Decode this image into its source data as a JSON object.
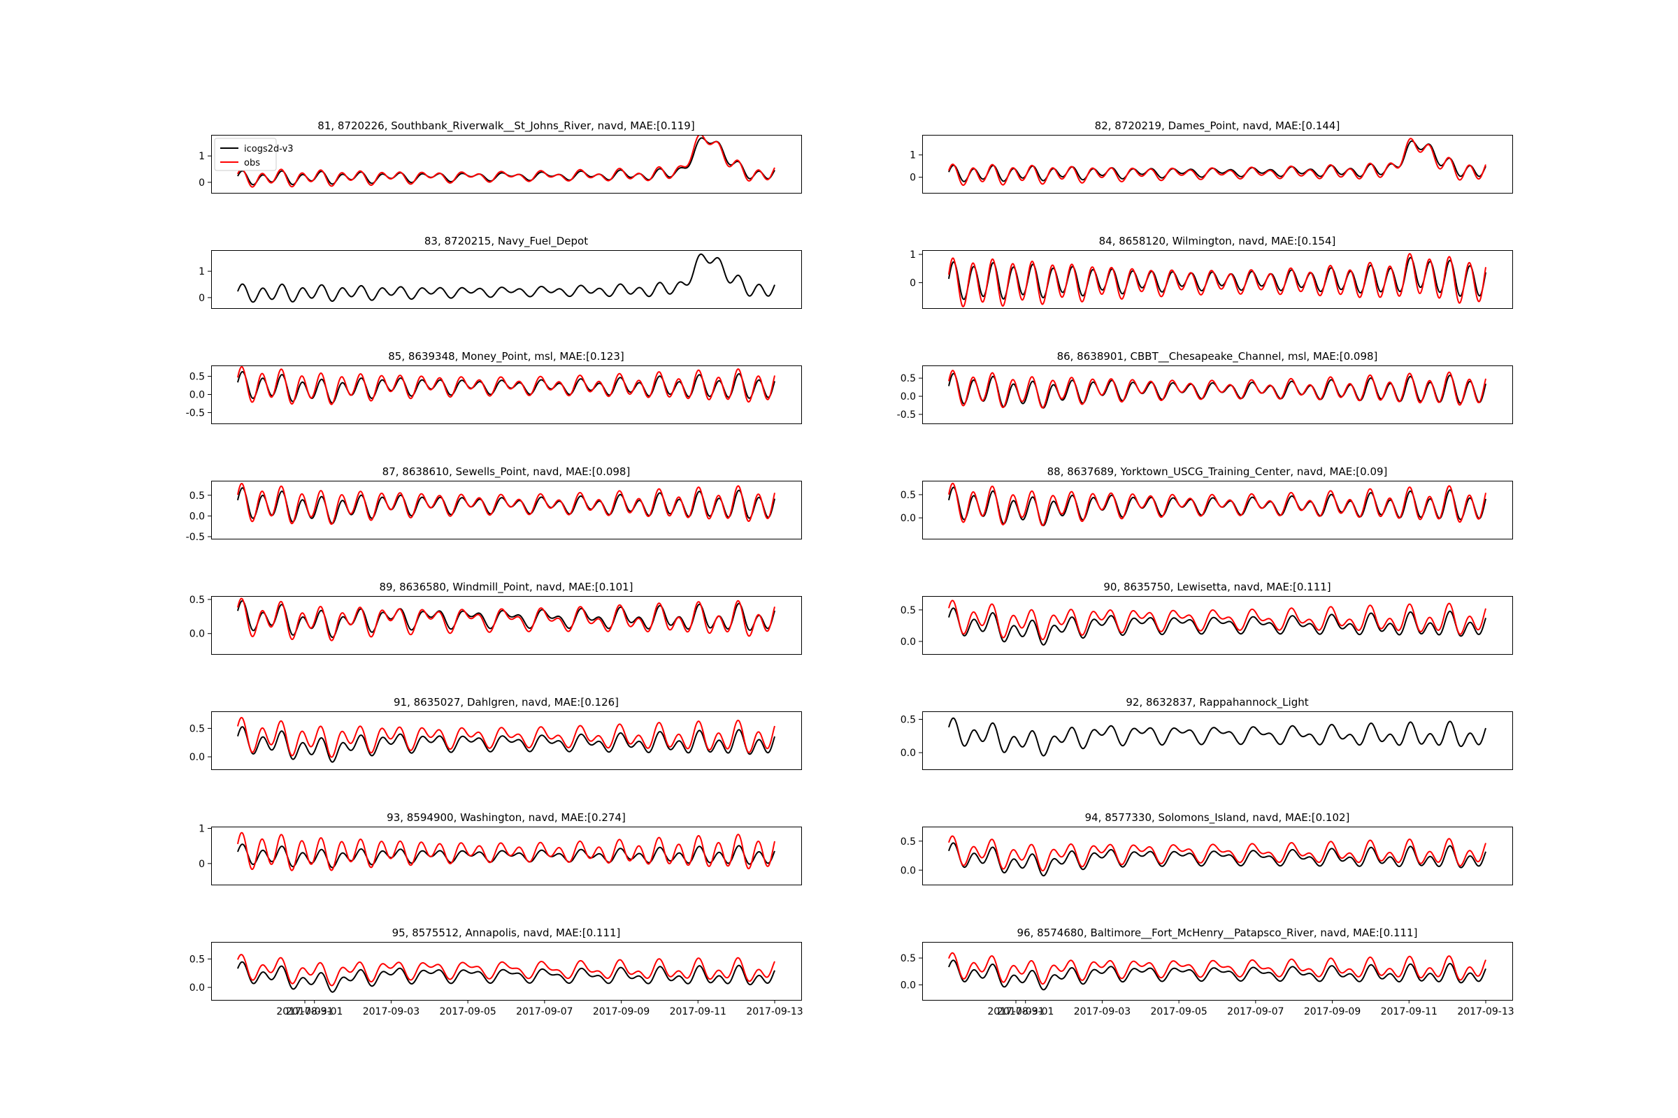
{
  "figure": {
    "legend": {
      "entries": [
        "icogs2d-v3",
        "obs"
      ],
      "location": "upper left of first panel"
    },
    "colors": {
      "model": "#000000",
      "obs": "#ff0000"
    },
    "shared_x_ticks": [
      "2017-08-31",
      "2017-09-01",
      "2017-09-03",
      "2017-09-05",
      "2017-09-07",
      "2017-09-09",
      "2017-09-11",
      "2017-09-13"
    ]
  },
  "chart_data": [
    {
      "type": "line",
      "title": "81, 8720226, Southbank_Riverwalk__St_Johns_River, navd, MAE:[0.119]",
      "yticks": [
        "0",
        "1"
      ],
      "ylim": [
        -0.4,
        1.8
      ],
      "has_obs": true,
      "params": {
        "m": 0.15,
        "a": 0.2,
        "tr": 0.012,
        "storm": 1.35,
        "dip": 0,
        "bias": 0.0,
        "ampr": 1.3
      }
    },
    {
      "type": "line",
      "title": "82, 8720219, Dames_Point, navd, MAE:[0.144]",
      "yticks": [
        "0",
        "1"
      ],
      "ylim": [
        -0.7,
        1.9
      ],
      "has_obs": true,
      "params": {
        "m": 0.15,
        "a": 0.3,
        "tr": 0.012,
        "storm": 1.2,
        "dip": 0,
        "bias": -0.05,
        "ampr": 1.3
      }
    },
    {
      "type": "line",
      "title": "83, 8720215, Navy_Fuel_Depot",
      "yticks": [
        "0",
        "1"
      ],
      "ylim": [
        -0.4,
        1.8
      ],
      "has_obs": false,
      "params": {
        "m": 0.15,
        "a": 0.28,
        "tr": 0.012,
        "storm": 1.25,
        "dip": 0,
        "bias": 0,
        "ampr": 1
      }
    },
    {
      "type": "line",
      "title": "84, 8658120, Wilmington, navd, MAE:[0.154]",
      "yticks": [
        "0",
        "1"
      ],
      "ylim": [
        -0.9,
        1.15
      ],
      "has_obs": true,
      "params": {
        "m": 0.05,
        "a": 0.6,
        "tr": 0.004,
        "storm": 0.25,
        "dip": 0,
        "bias": -0.05,
        "ampr": 1.3
      }
    },
    {
      "type": "line",
      "title": "85, 8639348, Money_Point, msl, MAE:[0.123]",
      "yticks": [
        "0.5",
        "0.0",
        "-0.5"
      ],
      "ylim": [
        -0.8,
        0.8
      ],
      "has_obs": true,
      "params": {
        "m": 0.25,
        "a": 0.3,
        "tr": -0.004,
        "storm": 0,
        "dip": 0.15,
        "bias": 0.02,
        "ampr": 1.35
      }
    },
    {
      "type": "line",
      "title": "86, 8638901, CBBT__Chesapeake_Channel, msl, MAE:[0.098]",
      "yticks": [
        "0.5",
        "0.0",
        "-0.5"
      ],
      "ylim": [
        -0.75,
        0.85
      ],
      "has_obs": true,
      "params": {
        "m": 0.2,
        "a": 0.35,
        "tr": -0.003,
        "storm": 0,
        "dip": 0.15,
        "bias": 0.02,
        "ampr": 1.15
      }
    },
    {
      "type": "line",
      "title": "87, 8638610, Sewells_Point, navd, MAE:[0.098]",
      "yticks": [
        "0.5",
        "0.0",
        "-0.5"
      ],
      "ylim": [
        -0.55,
        0.85
      ],
      "has_obs": true,
      "params": {
        "m": 0.3,
        "a": 0.3,
        "tr": -0.004,
        "storm": 0,
        "dip": 0.15,
        "bias": 0.02,
        "ampr": 1.25
      }
    },
    {
      "type": "line",
      "title": "88, 8637689, Yorktown_USCG_Training_Center, navd, MAE:[0.09]",
      "yticks": [
        "0.5",
        "0.0"
      ],
      "ylim": [
        -0.45,
        0.8
      ],
      "has_obs": true,
      "params": {
        "m": 0.3,
        "a": 0.28,
        "tr": -0.004,
        "storm": 0,
        "dip": 0.15,
        "bias": 0.02,
        "ampr": 1.2
      }
    },
    {
      "type": "line",
      "title": "89, 8636580, Windmill_Point, navd, MAE:[0.101]",
      "yticks": [
        "0.5",
        "0.0"
      ],
      "ylim": [
        -0.3,
        0.55
      ],
      "has_obs": true,
      "params": {
        "m": 0.25,
        "a": 0.15,
        "tr": -0.003,
        "storm": 0,
        "dip": 0.1,
        "bias": -0.02,
        "ampr": 1.3
      }
    },
    {
      "type": "line",
      "title": "90, 8635750, Lewisetta, navd, MAE:[0.111]",
      "yticks": [
        "0.5",
        "0.0"
      ],
      "ylim": [
        -0.2,
        0.72
      ],
      "has_obs": true,
      "params": {
        "m": 0.3,
        "a": 0.15,
        "tr": -0.004,
        "storm": 0,
        "dip": 0.15,
        "bias": 0.08,
        "ampr": 1.2
      }
    },
    {
      "type": "line",
      "title": "91, 8635027, Dahlgren, navd, MAE:[0.126]",
      "yticks": [
        "0.5",
        "0.0"
      ],
      "ylim": [
        -0.22,
        0.8
      ],
      "has_obs": true,
      "params": {
        "m": 0.28,
        "a": 0.17,
        "tr": -0.004,
        "storm": 0,
        "dip": 0.15,
        "bias": 0.1,
        "ampr": 1.3
      }
    },
    {
      "type": "line",
      "title": "92, 8632837, Rappahannock_Light",
      "yticks": [
        "0.5",
        "0.0"
      ],
      "ylim": [
        -0.25,
        0.62
      ],
      "has_obs": false,
      "params": {
        "m": 0.3,
        "a": 0.14,
        "tr": -0.004,
        "storm": 0,
        "dip": 0.15,
        "bias": 0,
        "ampr": 1
      }
    },
    {
      "type": "line",
      "title": "93, 8594900, Washington, navd, MAE:[0.274]",
      "yticks": [
        "0",
        "1"
      ],
      "ylim": [
        -0.6,
        1.05
      ],
      "has_obs": true,
      "params": {
        "m": 0.25,
        "a": 0.22,
        "tr": -0.003,
        "storm": 0,
        "dip": 0.1,
        "bias": 0.1,
        "ampr": 2.0
      }
    },
    {
      "type": "line",
      "title": "94, 8577330, Solomons_Island, navd, MAE:[0.102]",
      "yticks": [
        "0.5",
        "0.0"
      ],
      "ylim": [
        -0.25,
        0.75
      ],
      "has_obs": true,
      "params": {
        "m": 0.25,
        "a": 0.14,
        "tr": -0.004,
        "storm": 0,
        "dip": 0.15,
        "bias": 0.08,
        "ampr": 1.2
      }
    },
    {
      "type": "line",
      "title": "95, 8575512, Annapolis, navd, MAE:[0.111]",
      "yticks": [
        "0.5",
        "0.0"
      ],
      "ylim": [
        -0.22,
        0.8
      ],
      "has_obs": true,
      "params": {
        "m": 0.25,
        "a": 0.12,
        "tr": -0.005,
        "storm": 0,
        "dip": 0.15,
        "bias": 0.1,
        "ampr": 1.15
      }
    },
    {
      "type": "line",
      "title": "96, 8574680, Baltimore__Fort_McHenry__Patapsco_River, navd, MAE:[0.111]",
      "yticks": [
        "0.5",
        "0.0"
      ],
      "ylim": [
        -0.28,
        0.8
      ],
      "has_obs": true,
      "params": {
        "m": 0.25,
        "a": 0.13,
        "tr": -0.005,
        "storm": 0,
        "dip": 0.15,
        "bias": 0.1,
        "ampr": 1.2
      }
    }
  ]
}
